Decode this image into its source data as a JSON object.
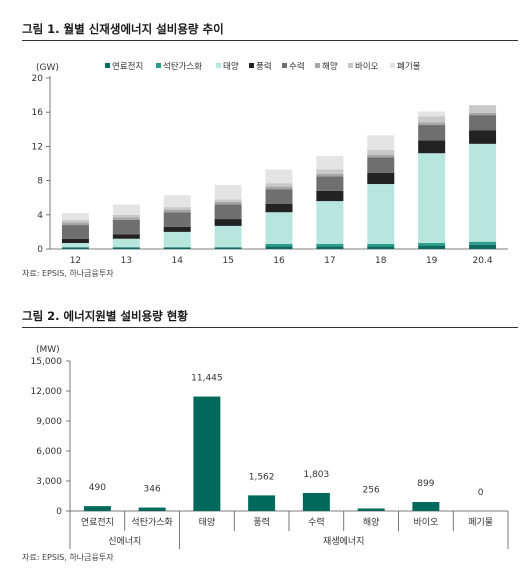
{
  "figure1": {
    "title": "그림 1. 월별 신재생에너지 설비용량 추이",
    "source": "자료: EPSIS, 하나금융투자",
    "chart_data": {
      "type": "bar",
      "stacked": true,
      "unit_label": "(GW)",
      "categories": [
        "12",
        "13",
        "14",
        "15",
        "16",
        "17",
        "18",
        "19",
        "20.4"
      ],
      "ylim": [
        0,
        20
      ],
      "yticks": [
        0,
        4,
        8,
        12,
        16,
        20
      ],
      "legend_position": "top-right",
      "series": [
        {
          "name": "연료전지",
          "color": "#0b6b5e",
          "values": [
            0.2,
            0.2,
            0.2,
            0.2,
            0.3,
            0.3,
            0.3,
            0.4,
            0.5
          ]
        },
        {
          "name": "석탄가스화",
          "color": "#2a9d8f",
          "values": [
            0,
            0,
            0,
            0,
            0.3,
            0.3,
            0.3,
            0.3,
            0.35
          ]
        },
        {
          "name": "태양",
          "color": "#b7e6de",
          "values": [
            0.5,
            1.0,
            1.8,
            2.5,
            3.7,
            5.0,
            7.0,
            10.5,
            11.45
          ]
        },
        {
          "name": "풍력",
          "color": "#222222",
          "values": [
            0.5,
            0.5,
            0.6,
            0.8,
            1.0,
            1.2,
            1.3,
            1.5,
            1.56
          ]
        },
        {
          "name": "수력",
          "color": "#6f6f6f",
          "values": [
            1.6,
            1.7,
            1.7,
            1.7,
            1.7,
            1.7,
            1.8,
            1.8,
            1.8
          ]
        },
        {
          "name": "해양",
          "color": "#a6a6a6",
          "values": [
            0.3,
            0.3,
            0.3,
            0.3,
            0.3,
            0.3,
            0.3,
            0.3,
            0.26
          ]
        },
        {
          "name": "바이오",
          "color": "#c8c8c8",
          "values": [
            0.3,
            0.3,
            0.3,
            0.3,
            0.4,
            0.5,
            0.6,
            0.7,
            0.9
          ]
        },
        {
          "name": "폐기물",
          "color": "#e4e4e4",
          "values": [
            0.8,
            1.2,
            1.4,
            1.7,
            1.6,
            1.6,
            1.7,
            0.6,
            0
          ]
        }
      ]
    }
  },
  "figure2": {
    "title": "그림 2. 에너지원별 설비용량 현황",
    "source": "자료: EPSIS, 하나금융투자",
    "chart_data": {
      "type": "bar",
      "unit_label": "(MW)",
      "categories": [
        "연료전지",
        "석탄가스화",
        "태양",
        "풍력",
        "수력",
        "해양",
        "바이오",
        "폐기물"
      ],
      "values": [
        490,
        346,
        11445,
        1562,
        1803,
        256,
        899,
        0
      ],
      "data_labels": [
        "490",
        "346",
        "11,445",
        "1,562",
        "1,803",
        "256",
        "899",
        "0"
      ],
      "ylim": [
        0,
        15000
      ],
      "yticks": [
        0,
        3000,
        6000,
        9000,
        12000,
        15000
      ],
      "ytick_labels": [
        "0",
        "3,000",
        "6,000",
        "9,000",
        "12,000",
        "15,000"
      ],
      "bar_color": "#00695c",
      "groups": [
        {
          "name": "신에너지",
          "span": [
            0,
            1
          ]
        },
        {
          "name": "재생에너지",
          "span": [
            2,
            7
          ]
        }
      ]
    }
  }
}
